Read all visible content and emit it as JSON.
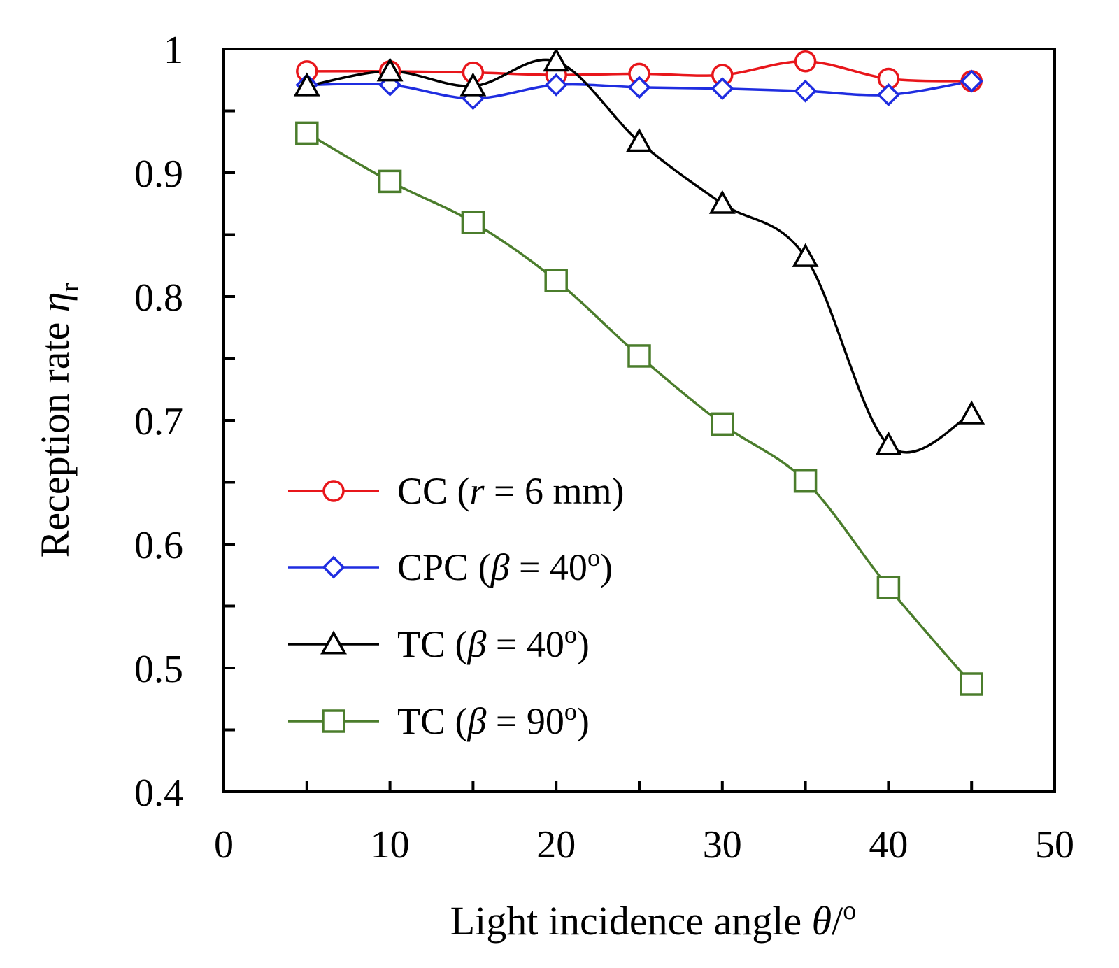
{
  "chart_data": {
    "type": "line",
    "x": [
      5,
      10,
      15,
      20,
      25,
      30,
      35,
      40,
      45
    ],
    "xlim": [
      0,
      50
    ],
    "ylim": [
      0.4,
      1.0
    ],
    "x_ticks": [
      "0",
      "10",
      "20",
      "30",
      "40",
      "50"
    ],
    "y_ticks": [
      "0.4",
      "0.5",
      "0.6",
      "0.7",
      "0.8",
      "0.9",
      "1"
    ],
    "xlabel": {
      "main": "Light incidence angle ",
      "var": "θ",
      "unit": "/",
      "sup": "o"
    },
    "ylabel": {
      "main": "Reception rate ",
      "var": "η",
      "sub": "r"
    },
    "grid": false,
    "legend_position": "lower-left",
    "series": [
      {
        "name_parts": {
          "a": "CC (",
          "v": "r",
          "b": " = 6 mm)",
          "sup": ""
        },
        "color": "#e8161b",
        "marker": "circle",
        "values": [
          0.982,
          0.982,
          0.981,
          0.979,
          0.98,
          0.979,
          0.99,
          0.976,
          0.974
        ]
      },
      {
        "name_parts": {
          "a": "CPC (",
          "v": "β",
          "b": " = 40",
          "sup": "o",
          "c": ")"
        },
        "color": "#1f2de0",
        "marker": "diamond",
        "values": [
          0.971,
          0.971,
          0.96,
          0.971,
          0.969,
          0.968,
          0.966,
          0.963,
          0.974
        ]
      },
      {
        "name_parts": {
          "a": "TC (",
          "v": "β",
          "b": " = 40",
          "sup": "o",
          "c": ")"
        },
        "color": "#000000",
        "marker": "triangle",
        "values": [
          0.97,
          0.982,
          0.97,
          0.99,
          0.925,
          0.875,
          0.832,
          0.68,
          0.705
        ]
      },
      {
        "name_parts": {
          "a": "TC (",
          "v": "β",
          "b": " = 90",
          "sup": "o",
          "c": ")"
        },
        "color": "#4b7d2c",
        "marker": "square",
        "values": [
          0.932,
          0.893,
          0.86,
          0.813,
          0.752,
          0.697,
          0.651,
          0.565,
          0.487
        ]
      }
    ]
  }
}
